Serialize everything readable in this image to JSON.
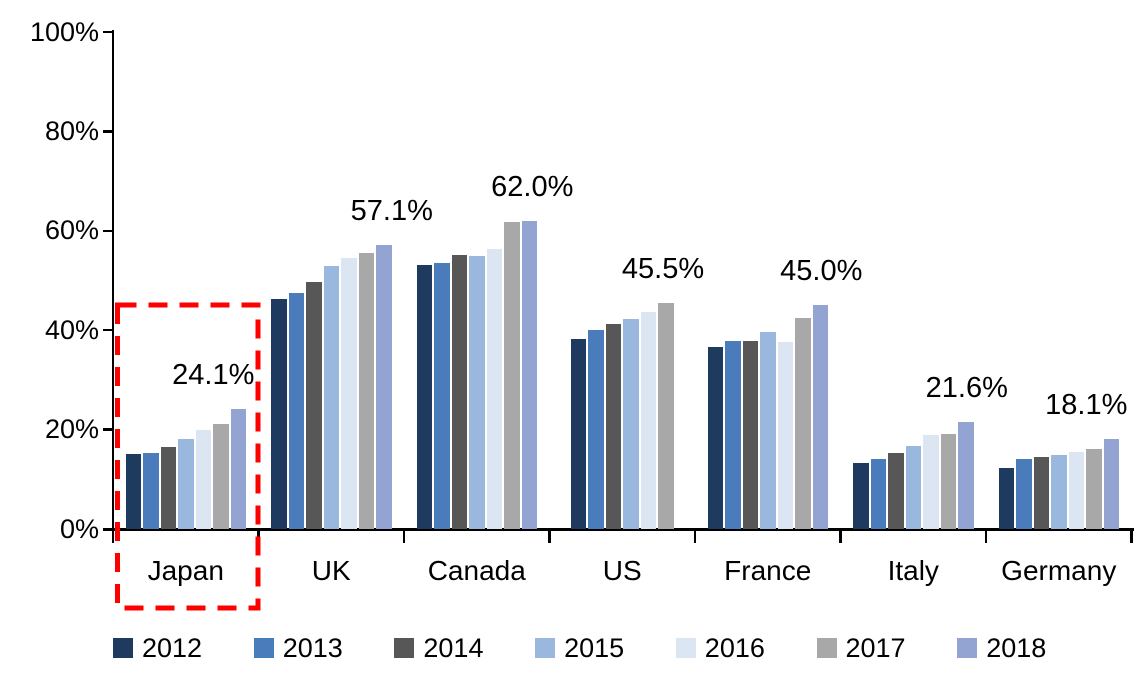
{
  "chart_data": {
    "type": "bar",
    "title": "",
    "categories": [
      "Japan",
      "UK",
      "Canada",
      "US",
      "France",
      "Italy",
      "Germany"
    ],
    "series": [
      {
        "name": "2012",
        "color": "#1F3A5F",
        "values": [
          15.1,
          46.2,
          53.2,
          38.3,
          36.6,
          13.2,
          12.3
        ]
      },
      {
        "name": "2013",
        "color": "#4A7CBC",
        "values": [
          15.2,
          47.5,
          53.6,
          40.0,
          37.8,
          14.1,
          14.0
        ]
      },
      {
        "name": "2014",
        "color": "#575757",
        "values": [
          16.5,
          49.6,
          55.1,
          41.3,
          37.8,
          15.3,
          14.4
        ]
      },
      {
        "name": "2015",
        "color": "#9AB8DE",
        "values": [
          18.1,
          53.0,
          55.0,
          42.3,
          39.6,
          16.8,
          14.8
        ]
      },
      {
        "name": "2016",
        "color": "#DCE5F2",
        "values": [
          19.9,
          54.5,
          56.4,
          43.7,
          37.6,
          19.0,
          15.5
        ]
      },
      {
        "name": "2017",
        "color": "#A8A8A8",
        "values": [
          21.1,
          55.5,
          61.8,
          45.5,
          42.5,
          19.2,
          16.0
        ]
      },
      {
        "name": "2018",
        "color": "#93A4D3",
        "values": [
          24.1,
          57.1,
          62.0,
          null,
          45.0,
          21.6,
          18.1
        ]
      }
    ],
    "value_labels": [
      "24.1%",
      "57.1%",
      "62.0%",
      "45.5%",
      "45.0%",
      "21.6%",
      "18.1%"
    ],
    "y_ticks": [
      "0%",
      "20%",
      "40%",
      "60%",
      "80%",
      "100%"
    ],
    "ylim": [
      0,
      100
    ],
    "grid": false,
    "legend_position": "bottom",
    "highlight": {
      "category": "Japan",
      "style": "red-dashed-box",
      "color": "#FF0000"
    }
  }
}
